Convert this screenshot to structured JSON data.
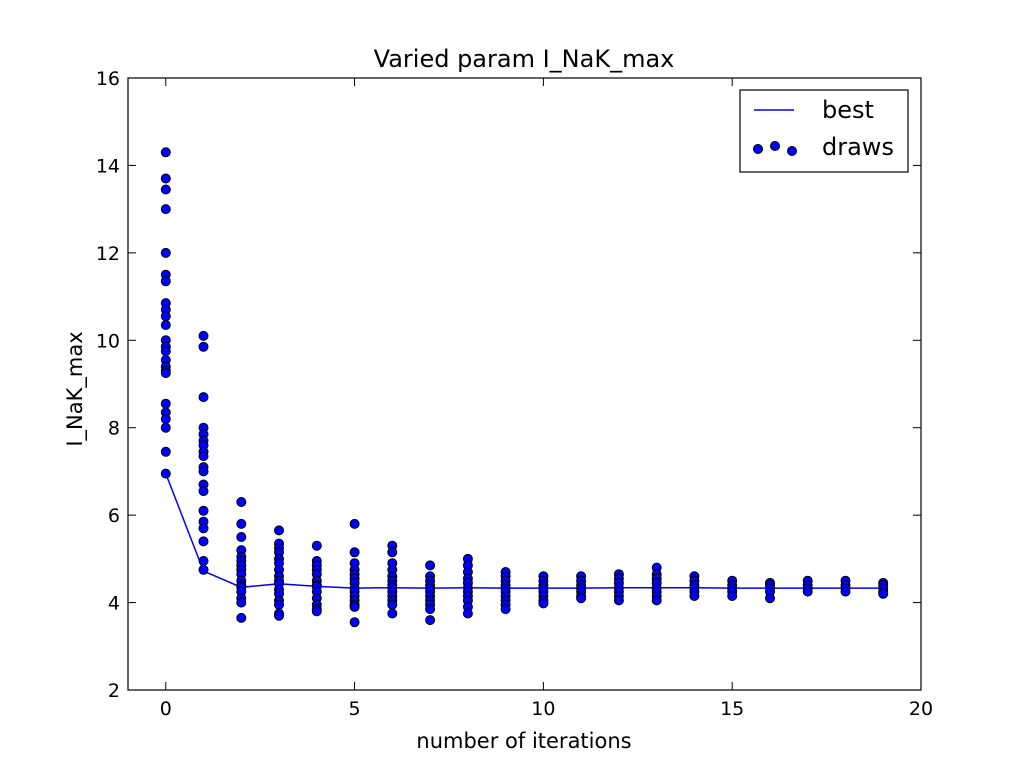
{
  "chart_data": {
    "type": "scatter",
    "title": "Varied param I_NaK_max",
    "xlabel": "number of iterations",
    "ylabel": "I_NaK_max",
    "xlim": [
      -1,
      20
    ],
    "ylim": [
      2,
      16
    ],
    "xticks": [
      0,
      5,
      10,
      15,
      20
    ],
    "yticks": [
      2,
      4,
      6,
      8,
      10,
      12,
      14,
      16
    ],
    "grid": false,
    "legend_position": "top-right",
    "colors": {
      "series": "#0000ff",
      "marker_edge": "#000000"
    },
    "series": [
      {
        "name": "best",
        "kind": "line",
        "x": [
          0,
          1,
          2,
          3,
          4,
          5,
          6,
          7,
          8,
          9,
          10,
          11,
          12,
          13,
          14,
          15,
          16,
          17,
          18,
          19
        ],
        "y": [
          6.95,
          4.72,
          4.35,
          4.43,
          4.37,
          4.33,
          4.34,
          4.33,
          4.34,
          4.33,
          4.33,
          4.33,
          4.34,
          4.34,
          4.34,
          4.33,
          4.33,
          4.33,
          4.33,
          4.33
        ]
      },
      {
        "name": "draws",
        "kind": "scatter",
        "points": [
          [
            0,
            14.3
          ],
          [
            0,
            13.7
          ],
          [
            0,
            13.45
          ],
          [
            0,
            13.0
          ],
          [
            0,
            12.0
          ],
          [
            0,
            11.5
          ],
          [
            0,
            11.35
          ],
          [
            0,
            10.85
          ],
          [
            0,
            10.7
          ],
          [
            0,
            10.55
          ],
          [
            0,
            10.35
          ],
          [
            0,
            10.0
          ],
          [
            0,
            9.85
          ],
          [
            0,
            9.75
          ],
          [
            0,
            9.55
          ],
          [
            0,
            9.4
          ],
          [
            0,
            9.3
          ],
          [
            0,
            9.25
          ],
          [
            0,
            8.55
          ],
          [
            0,
            8.35
          ],
          [
            0,
            8.2
          ],
          [
            0,
            8.0
          ],
          [
            0,
            7.45
          ],
          [
            0,
            6.95
          ],
          [
            1,
            10.1
          ],
          [
            1,
            9.85
          ],
          [
            1,
            8.7
          ],
          [
            1,
            8.0
          ],
          [
            1,
            7.85
          ],
          [
            1,
            7.7
          ],
          [
            1,
            7.6
          ],
          [
            1,
            7.45
          ],
          [
            1,
            7.35
          ],
          [
            1,
            7.1
          ],
          [
            1,
            7.0
          ],
          [
            1,
            6.7
          ],
          [
            1,
            6.55
          ],
          [
            1,
            6.1
          ],
          [
            1,
            5.85
          ],
          [
            1,
            5.7
          ],
          [
            1,
            5.4
          ],
          [
            1,
            4.95
          ],
          [
            1,
            4.75
          ],
          [
            2,
            6.3
          ],
          [
            2,
            5.8
          ],
          [
            2,
            5.5
          ],
          [
            2,
            5.2
          ],
          [
            2,
            5.05
          ],
          [
            2,
            4.95
          ],
          [
            2,
            4.85
          ],
          [
            2,
            4.75
          ],
          [
            2,
            4.65
          ],
          [
            2,
            4.5
          ],
          [
            2,
            4.4
          ],
          [
            2,
            4.35
          ],
          [
            2,
            4.25
          ],
          [
            2,
            4.1
          ],
          [
            2,
            4.0
          ],
          [
            2,
            3.65
          ],
          [
            3,
            5.65
          ],
          [
            3,
            5.35
          ],
          [
            3,
            5.25
          ],
          [
            3,
            5.15
          ],
          [
            3,
            5.0
          ],
          [
            3,
            4.9
          ],
          [
            3,
            4.75
          ],
          [
            3,
            4.6
          ],
          [
            3,
            4.5
          ],
          [
            3,
            4.43
          ],
          [
            3,
            4.3
          ],
          [
            3,
            4.2
          ],
          [
            3,
            4.05
          ],
          [
            3,
            3.95
          ],
          [
            3,
            3.75
          ],
          [
            3,
            3.7
          ],
          [
            4,
            5.3
          ],
          [
            4,
            4.95
          ],
          [
            4,
            4.85
          ],
          [
            4,
            4.75
          ],
          [
            4,
            4.65
          ],
          [
            4,
            4.5
          ],
          [
            4,
            4.4
          ],
          [
            4,
            4.37
          ],
          [
            4,
            4.25
          ],
          [
            4,
            4.1
          ],
          [
            4,
            3.95
          ],
          [
            4,
            3.85
          ],
          [
            4,
            3.8
          ],
          [
            5,
            5.8
          ],
          [
            5,
            5.15
          ],
          [
            5,
            4.9
          ],
          [
            5,
            4.75
          ],
          [
            5,
            4.65
          ],
          [
            5,
            4.55
          ],
          [
            5,
            4.45
          ],
          [
            5,
            4.33
          ],
          [
            5,
            4.25
          ],
          [
            5,
            4.15
          ],
          [
            5,
            4.05
          ],
          [
            5,
            3.95
          ],
          [
            5,
            3.9
          ],
          [
            5,
            3.55
          ],
          [
            6,
            5.3
          ],
          [
            6,
            5.15
          ],
          [
            6,
            4.9
          ],
          [
            6,
            4.75
          ],
          [
            6,
            4.6
          ],
          [
            6,
            4.5
          ],
          [
            6,
            4.4
          ],
          [
            6,
            4.34
          ],
          [
            6,
            4.25
          ],
          [
            6,
            4.15
          ],
          [
            6,
            4.05
          ],
          [
            6,
            3.95
          ],
          [
            6,
            3.75
          ],
          [
            7,
            4.85
          ],
          [
            7,
            4.6
          ],
          [
            7,
            4.5
          ],
          [
            7,
            4.4
          ],
          [
            7,
            4.33
          ],
          [
            7,
            4.25
          ],
          [
            7,
            4.15
          ],
          [
            7,
            4.05
          ],
          [
            7,
            3.95
          ],
          [
            7,
            3.85
          ],
          [
            7,
            3.6
          ],
          [
            8,
            5.0
          ],
          [
            8,
            4.85
          ],
          [
            8,
            4.7
          ],
          [
            8,
            4.55
          ],
          [
            8,
            4.45
          ],
          [
            8,
            4.34
          ],
          [
            8,
            4.25
          ],
          [
            8,
            4.15
          ],
          [
            8,
            4.05
          ],
          [
            8,
            3.9
          ],
          [
            8,
            3.75
          ],
          [
            9,
            4.7
          ],
          [
            9,
            4.6
          ],
          [
            9,
            4.5
          ],
          [
            9,
            4.4
          ],
          [
            9,
            4.33
          ],
          [
            9,
            4.25
          ],
          [
            9,
            4.15
          ],
          [
            9,
            4.05
          ],
          [
            9,
            3.95
          ],
          [
            9,
            3.85
          ],
          [
            10,
            4.6
          ],
          [
            10,
            4.5
          ],
          [
            10,
            4.4
          ],
          [
            10,
            4.33
          ],
          [
            10,
            4.25
          ],
          [
            10,
            4.15
          ],
          [
            10,
            4.05
          ],
          [
            10,
            3.98
          ],
          [
            11,
            4.6
          ],
          [
            11,
            4.5
          ],
          [
            11,
            4.4
          ],
          [
            11,
            4.33
          ],
          [
            11,
            4.25
          ],
          [
            11,
            4.15
          ],
          [
            11,
            4.1
          ],
          [
            12,
            4.65
          ],
          [
            12,
            4.55
          ],
          [
            12,
            4.45
          ],
          [
            12,
            4.34
          ],
          [
            12,
            4.25
          ],
          [
            12,
            4.15
          ],
          [
            12,
            4.05
          ],
          [
            13,
            4.8
          ],
          [
            13,
            4.65
          ],
          [
            13,
            4.55
          ],
          [
            13,
            4.45
          ],
          [
            13,
            4.34
          ],
          [
            13,
            4.25
          ],
          [
            13,
            4.15
          ],
          [
            13,
            4.05
          ],
          [
            14,
            4.6
          ],
          [
            14,
            4.5
          ],
          [
            14,
            4.4
          ],
          [
            14,
            4.34
          ],
          [
            14,
            4.25
          ],
          [
            14,
            4.15
          ],
          [
            15,
            4.5
          ],
          [
            15,
            4.4
          ],
          [
            15,
            4.33
          ],
          [
            15,
            4.25
          ],
          [
            15,
            4.15
          ],
          [
            16,
            4.45
          ],
          [
            16,
            4.4
          ],
          [
            16,
            4.33
          ],
          [
            16,
            4.25
          ],
          [
            16,
            4.1
          ],
          [
            17,
            4.5
          ],
          [
            17,
            4.4
          ],
          [
            17,
            4.33
          ],
          [
            17,
            4.25
          ],
          [
            18,
            4.5
          ],
          [
            18,
            4.4
          ],
          [
            18,
            4.33
          ],
          [
            18,
            4.25
          ],
          [
            19,
            4.45
          ],
          [
            19,
            4.4
          ],
          [
            19,
            4.33
          ],
          [
            19,
            4.25
          ],
          [
            19,
            4.2
          ]
        ]
      }
    ]
  }
}
